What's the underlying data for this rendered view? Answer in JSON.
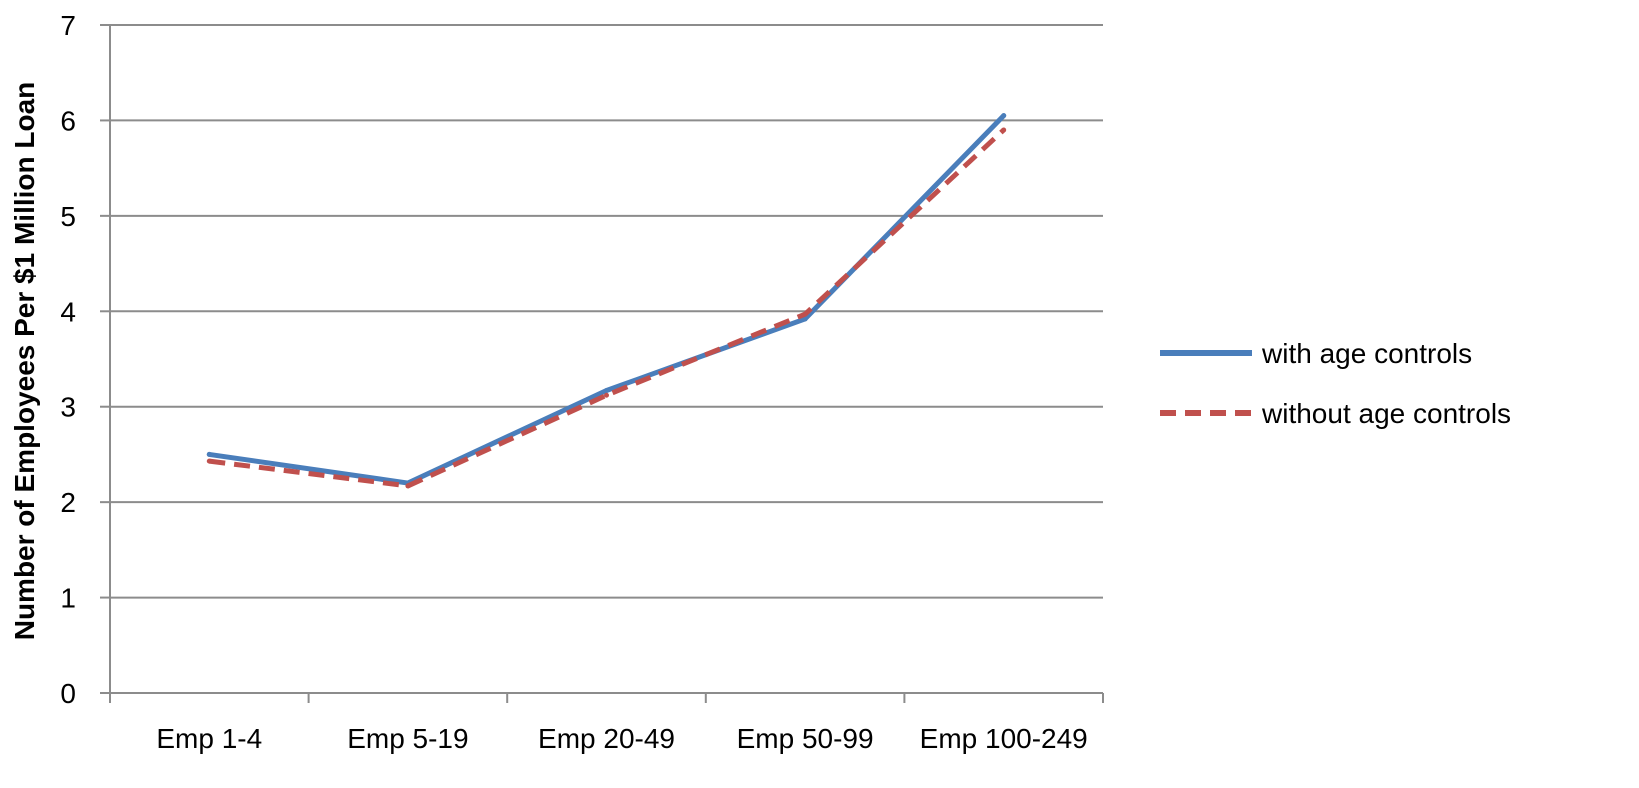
{
  "chart_data": {
    "type": "line",
    "title": "",
    "xlabel": "",
    "ylabel": "Number of Employees Per $1 Million Loan",
    "categories": [
      "Emp 1-4",
      "Emp 5-19",
      "Emp 20-49",
      "Emp 50-99",
      "Emp 100-249"
    ],
    "ylim": [
      0,
      7
    ],
    "yticks": [
      "0",
      "1",
      "2",
      "3",
      "4",
      "5",
      "6",
      "7"
    ],
    "grid": true,
    "legend_position": "right",
    "series": [
      {
        "name": "with age controls",
        "values": [
          2.5,
          2.2,
          3.17,
          3.92,
          6.05
        ],
        "color": "#4a7ebb",
        "dash": "solid"
      },
      {
        "name": "without age controls",
        "values": [
          2.43,
          2.17,
          3.12,
          3.97,
          5.9
        ],
        "color": "#c0504d",
        "dash": "dashed"
      }
    ]
  }
}
